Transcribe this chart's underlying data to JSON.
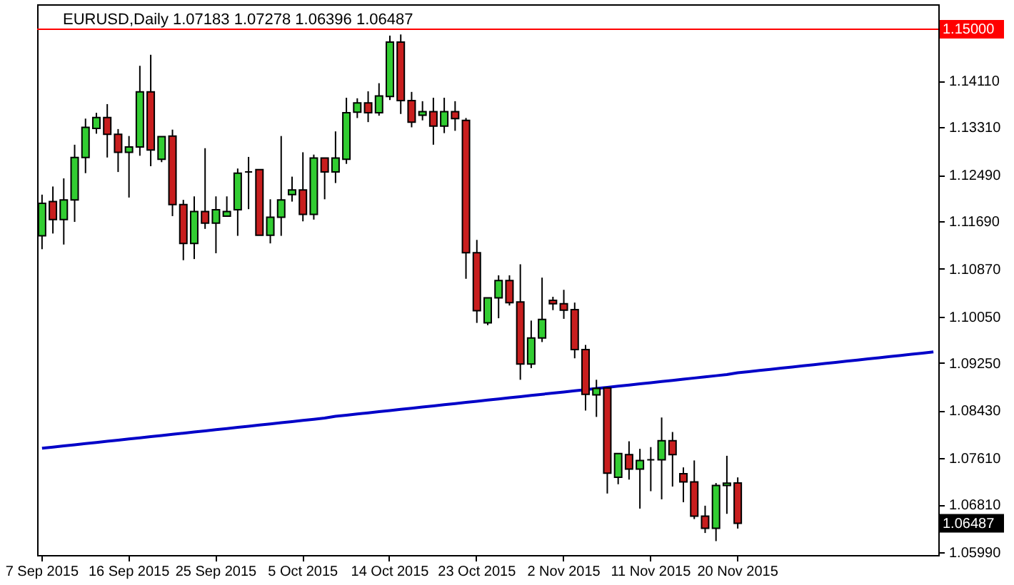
{
  "chart_data": {
    "type": "candlestick",
    "title": "EURUSD,Daily  1.07183 1.07278 1.06396 1.06487",
    "categories": [
      "7 Sep 2015",
      null,
      null,
      null,
      null,
      null,
      null,
      null,
      "16 Sep 2015",
      null,
      null,
      null,
      null,
      null,
      null,
      null,
      "25 Sep 2015",
      null,
      null,
      null,
      null,
      null,
      null,
      null,
      "5 Oct 2015",
      null,
      null,
      null,
      null,
      null,
      null,
      null,
      "14 Oct 2015",
      null,
      null,
      null,
      null,
      null,
      null,
      null,
      "23 Oct 2015",
      null,
      null,
      null,
      null,
      null,
      null,
      null,
      "2 Nov 2015",
      null,
      null,
      null,
      null,
      null,
      null,
      null,
      "11 Nov 2015",
      null,
      null,
      null,
      null,
      null,
      null,
      null,
      "20 Nov 2015",
      null,
      null,
      null,
      null,
      null,
      null,
      null,
      null,
      null,
      null,
      null,
      null,
      null,
      null,
      null,
      null,
      null,
      null
    ],
    "ohlc": [
      [
        1.1144,
        1.1215,
        1.1121,
        1.12
      ],
      [
        1.1203,
        1.1229,
        1.1148,
        1.1172
      ],
      [
        1.1172,
        1.1243,
        1.1129,
        1.1206
      ],
      [
        1.1206,
        1.1301,
        1.1168,
        1.1279
      ],
      [
        1.1279,
        1.1346,
        1.1252,
        1.1331
      ],
      [
        1.1329,
        1.1356,
        1.132,
        1.1348
      ],
      [
        1.1348,
        1.1371,
        1.1279,
        1.1319
      ],
      [
        1.1319,
        1.1328,
        1.1254,
        1.1288
      ],
      [
        1.1288,
        1.1316,
        1.121,
        1.1297
      ],
      [
        1.1297,
        1.1437,
        1.1282,
        1.1392
      ],
      [
        1.1392,
        1.1456,
        1.1264,
        1.1292
      ],
      [
        1.1276,
        1.1315,
        1.1271,
        1.1315
      ],
      [
        1.1316,
        1.1327,
        1.1178,
        1.1198
      ],
      [
        1.1198,
        1.1206,
        1.1102,
        1.1131
      ],
      [
        1.1131,
        1.1212,
        1.1104,
        1.1186
      ],
      [
        1.1186,
        1.1295,
        1.1156,
        1.1166
      ],
      [
        1.1166,
        1.1212,
        1.1114,
        1.1189
      ],
      [
        1.1178,
        1.1212,
        1.1178,
        1.1186
      ],
      [
        1.1189,
        1.126,
        1.1144,
        1.1252
      ],
      [
        1.1254,
        1.128,
        1.119,
        1.1254
      ],
      [
        1.1258,
        1.1258,
        1.1145,
        1.1145
      ],
      [
        1.1145,
        1.1207,
        1.1131,
        1.1176
      ],
      [
        1.1176,
        1.1316,
        1.1144,
        1.1206
      ],
      [
        1.1215,
        1.1246,
        1.1203,
        1.1223
      ],
      [
        1.1223,
        1.1288,
        1.1169,
        1.1181
      ],
      [
        1.1181,
        1.1284,
        1.1172,
        1.1278
      ],
      [
        1.1278,
        1.1278,
        1.1207,
        1.1254
      ],
      [
        1.1254,
        1.1324,
        1.1235,
        1.1278
      ],
      [
        1.1276,
        1.1382,
        1.1268,
        1.1356
      ],
      [
        1.1357,
        1.1381,
        1.1347,
        1.1373
      ],
      [
        1.1373,
        1.1393,
        1.134,
        1.1356
      ],
      [
        1.1356,
        1.1407,
        1.1351,
        1.1385
      ],
      [
        1.1384,
        1.1489,
        1.1378,
        1.1478
      ],
      [
        1.1478,
        1.1491,
        1.1354,
        1.1377
      ],
      [
        1.1377,
        1.1392,
        1.1331,
        1.134
      ],
      [
        1.1352,
        1.1376,
        1.1343,
        1.1358
      ],
      [
        1.1358,
        1.1382,
        1.1301,
        1.1333
      ],
      [
        1.1333,
        1.1382,
        1.1321,
        1.1358
      ],
      [
        1.1358,
        1.1376,
        1.1325,
        1.1346
      ],
      [
        1.1343,
        1.1347,
        1.107,
        1.1115
      ],
      [
        1.1115,
        1.1137,
        1.0994,
        1.1015
      ],
      [
        1.0994,
        1.1037,
        1.099,
        1.1037
      ],
      [
        1.1037,
        1.1076,
        1.1002,
        1.1067
      ],
      [
        1.1067,
        1.1076,
        1.1024,
        1.1029
      ],
      [
        1.103,
        1.1095,
        1.0896,
        1.0923
      ],
      [
        1.0923,
        1.0998,
        1.0916,
        1.0968
      ],
      [
        1.0968,
        1.1072,
        1.0961,
        1.1
      ],
      [
        1.1033,
        1.1039,
        1.1016,
        1.1027
      ],
      [
        1.1027,
        1.1051,
        1.1001,
        1.1016
      ],
      [
        1.1017,
        1.1029,
        1.0933,
        1.0948
      ],
      [
        1.0948,
        1.0956,
        1.0843,
        1.0871
      ],
      [
        1.087,
        1.0896,
        1.0832,
        1.0881
      ],
      [
        1.0882,
        1.0882,
        1.07,
        1.0735
      ],
      [
        1.0728,
        1.0769,
        1.0716,
        1.0769
      ],
      [
        1.0767,
        1.079,
        1.0724,
        1.0742
      ],
      [
        1.0742,
        1.0777,
        1.0674,
        1.0757
      ],
      [
        1.0758,
        1.078,
        1.0704,
        1.0758
      ],
      [
        1.0758,
        1.0831,
        1.069,
        1.0791
      ],
      [
        1.0791,
        1.0806,
        1.0712,
        1.0767
      ],
      [
        1.0734,
        1.0745,
        1.0685,
        1.072
      ],
      [
        1.072,
        1.0757,
        1.0656,
        1.0661
      ],
      [
        1.0661,
        1.0679,
        1.0632,
        1.064
      ],
      [
        1.064,
        1.0718,
        1.0618,
        1.0714
      ],
      [
        1.0714,
        1.0765,
        1.0665,
        1.0718
      ],
      [
        1.07183,
        1.07278,
        1.06396,
        1.06487
      ],
      null,
      null,
      null,
      null,
      null,
      null,
      null,
      null,
      null,
      null,
      null,
      null,
      null,
      null,
      null,
      null,
      null,
      null
    ],
    "colors": [
      "#32cd32",
      "#c81e1e",
      "#32cd32",
      "#32cd32",
      "#32cd32",
      "#32cd32",
      "#c81e1e",
      "#c81e1e",
      "#32cd32",
      "#32cd32",
      "#c81e1e",
      "#32cd32",
      "#c81e1e",
      "#c81e1e",
      "#32cd32",
      "#c81e1e",
      "#32cd32",
      "#32cd32",
      "#32cd32",
      "#000000",
      "#c81e1e",
      "#32cd32",
      "#32cd32",
      "#32cd32",
      "#c81e1e",
      "#32cd32",
      "#c81e1e",
      "#32cd32",
      "#32cd32",
      "#32cd32",
      "#c81e1e",
      "#32cd32",
      "#32cd32",
      "#c81e1e",
      "#c81e1e",
      "#32cd32",
      "#c81e1e",
      "#32cd32",
      "#c81e1e",
      "#c81e1e",
      "#c81e1e",
      "#32cd32",
      "#32cd32",
      "#c81e1e",
      "#c81e1e",
      "#32cd32",
      "#32cd32",
      "#c81e1e",
      "#c81e1e",
      "#c81e1e",
      "#c81e1e",
      "#32cd32",
      "#c81e1e",
      "#32cd32",
      "#c81e1e",
      "#32cd32",
      "#000000",
      "#32cd32",
      "#c81e1e",
      "#c81e1e",
      "#c81e1e",
      "#c81e1e",
      "#32cd32",
      "#32cd32",
      "#c81e1e",
      null,
      null,
      null,
      null,
      null,
      null,
      null,
      null,
      null,
      null,
      null,
      null,
      null,
      null,
      null,
      null,
      null,
      null
    ],
    "series": [
      {
        "type": "line",
        "color": "#0000c8",
        "values": [
          1.0778,
          1.078,
          1.0782,
          1.0784,
          1.0786,
          1.0788,
          1.079,
          1.0792,
          1.0794,
          1.0796,
          1.0798,
          1.08,
          1.0802,
          1.0804,
          1.0806,
          1.0808,
          1.081,
          1.0812,
          1.0814,
          1.0816,
          1.0818,
          1.082,
          1.0822,
          1.0824,
          1.0826,
          1.0828,
          1.083,
          1.0833,
          1.0835,
          1.0837,
          1.0839,
          1.0841,
          1.0843,
          1.0845,
          1.0847,
          1.0849,
          1.0851,
          1.0853,
          1.0855,
          1.0857,
          1.0859,
          1.0861,
          1.0863,
          1.0865,
          1.0867,
          1.0869,
          1.0871,
          1.0873,
          1.0875,
          1.0877,
          1.0879,
          1.0881,
          1.0883,
          1.0885,
          1.0887,
          1.0889,
          1.0891,
          1.0893,
          1.0895,
          1.0897,
          1.0899,
          1.0901,
          1.0903,
          1.0905,
          1.0908,
          1.091,
          1.0912,
          1.0914,
          1.0916,
          1.0918,
          1.092,
          1.0922,
          1.0924,
          1.0926,
          1.0928,
          1.093,
          1.0932,
          1.0934,
          1.0936,
          1.0938,
          1.094,
          1.0942,
          1.0944
        ]
      }
    ],
    "ylim": [
      1.0594,
      1.1543
    ],
    "yticks": [
      {
        "value": 1.0599,
        "label": "1.05990"
      },
      {
        "value": 1.0681,
        "label": "1.06810"
      },
      {
        "value": 1.0761,
        "label": "1.07610"
      },
      {
        "value": 1.0843,
        "label": "1.08430"
      },
      {
        "value": 1.0925,
        "label": "1.09250"
      },
      {
        "value": 1.1005,
        "label": "1.10050"
      },
      {
        "value": 1.1087,
        "label": "1.10870"
      },
      {
        "value": 1.1169,
        "label": "1.11690"
      },
      {
        "value": 1.1249,
        "label": "1.12490"
      },
      {
        "value": 1.1331,
        "label": "1.13310"
      },
      {
        "value": 1.1411,
        "label": "1.14110"
      }
    ],
    "ref_lines": [
      {
        "axis": "y",
        "value": 1.15,
        "label": "1.15000",
        "color": "#ff0000"
      }
    ],
    "annotations": [
      "1.06487"
    ],
    "grid": false
  }
}
